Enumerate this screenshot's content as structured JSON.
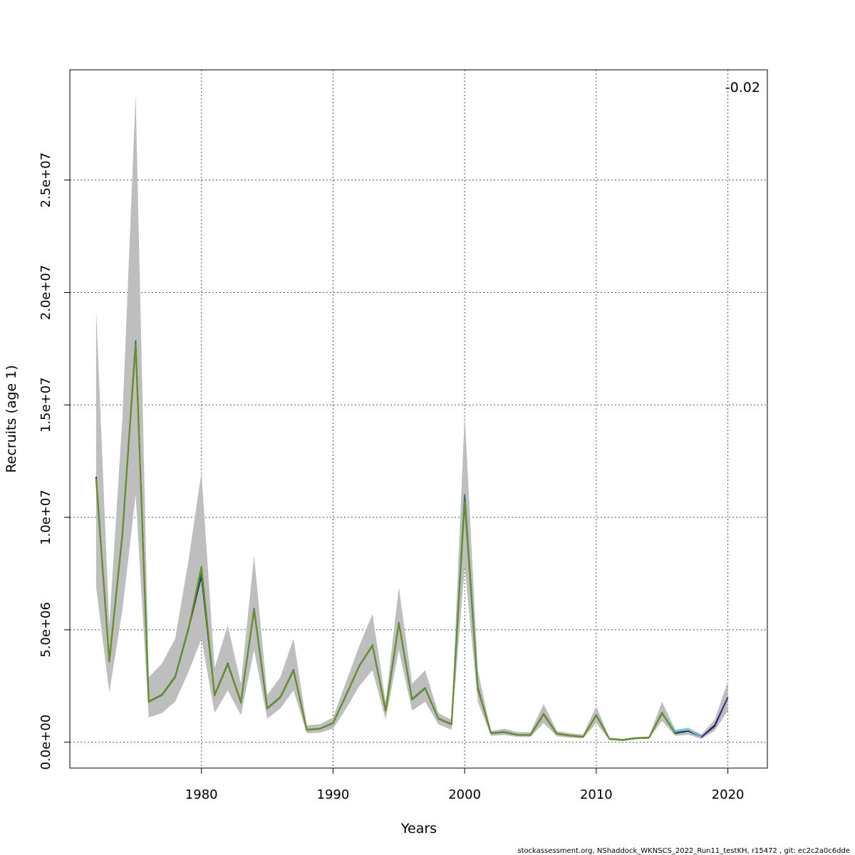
{
  "chart_data": {
    "type": "line",
    "xlabel": "Years",
    "ylabel": "Recruits (age 1)",
    "xlim": [
      1970,
      2023
    ],
    "ylim": [
      -1150000,
      29900000
    ],
    "x_ticks": [
      1980,
      1990,
      2000,
      2010,
      2020
    ],
    "y_ticks": [
      0,
      5000000,
      10000000,
      15000000,
      20000000,
      25000000
    ],
    "y_tick_labels": [
      "0.0e+00",
      "5.0e+06",
      "1.0e+07",
      "1.5e+07",
      "2.0e+07",
      "2.5e+07"
    ],
    "grid": true,
    "annotation": "-0.02",
    "footer": "stockassessment.org, NShaddock_WKNSCS_2022_Run11_testKH, r15472 , git: ec2c2a0c6dde",
    "band": {
      "x": [
        1972,
        1973,
        1974,
        1975,
        1976,
        1977,
        1978,
        1979,
        1980,
        1981,
        1982,
        1983,
        1984,
        1985,
        1986,
        1987,
        1988,
        1989,
        1990,
        1991,
        1992,
        1993,
        1994,
        1995,
        1996,
        1997,
        1998,
        1999,
        2000,
        2001,
        2002,
        2003,
        2004,
        2005,
        2006,
        2007,
        2008,
        2009,
        2010,
        2011,
        2012,
        2013,
        2014,
        2015,
        2016,
        2017,
        2018,
        2019,
        2020
      ],
      "upper": [
        19300000,
        5200000,
        14500000,
        28800000,
        2900000,
        3500000,
        4600000,
        8000000,
        12000000,
        3300000,
        5200000,
        2600000,
        8300000,
        2100000,
        2900000,
        4600000,
        750000,
        800000,
        1100000,
        2700000,
        4300000,
        5700000,
        1800000,
        6900000,
        2600000,
        3200000,
        1300000,
        1000000,
        14600000,
        3200000,
        500000,
        600000,
        450000,
        450000,
        1700000,
        500000,
        400000,
        350000,
        1600000,
        200000,
        150000,
        230000,
        250000,
        1800000,
        550000,
        650000,
        350000,
        1000000,
        2700000
      ],
      "lower": [
        6900000,
        2200000,
        5900000,
        11000000,
        1100000,
        1300000,
        1800000,
        3100000,
        4600000,
        1300000,
        2300000,
        1200000,
        4100000,
        1050000,
        1500000,
        2300000,
        400000,
        420000,
        600000,
        1500000,
        2500000,
        3200000,
        1000000,
        4100000,
        1400000,
        1800000,
        800000,
        550000,
        7800000,
        1800000,
        280000,
        320000,
        240000,
        230000,
        850000,
        260000,
        200000,
        170000,
        850000,
        90000,
        50000,
        130000,
        150000,
        950000,
        280000,
        330000,
        150000,
        500000,
        1400000
      ]
    },
    "series": [
      {
        "color": "#000000",
        "x": [
          1972,
          1973,
          1974,
          1975,
          1976,
          1977,
          1978,
          1979,
          1980,
          1981,
          1982,
          1983,
          1984,
          1985,
          1986,
          1987,
          1988,
          1989,
          1990,
          1991,
          1992,
          1993,
          1994,
          1995,
          1996,
          1997,
          1998,
          1999,
          2000,
          2001,
          2002,
          2003,
          2004,
          2005,
          2006,
          2007,
          2008,
          2009,
          2010,
          2011,
          2012,
          2013,
          2014,
          2015,
          2016,
          2017,
          2018,
          2019,
          2020
        ],
        "values": [
          11800000,
          3600000,
          9300000,
          17800000,
          1800000,
          2100000,
          2900000,
          5000000,
          7400000,
          2100000,
          3500000,
          1800000,
          5900000,
          1500000,
          2000000,
          3200000,
          550000,
          600000,
          850000,
          2100000,
          3400000,
          4300000,
          1400000,
          5300000,
          1900000,
          2400000,
          1050000,
          800000,
          10800000,
          2400000,
          400000,
          450000,
          330000,
          320000,
          1250000,
          380000,
          300000,
          240000,
          1200000,
          150000,
          100000,
          180000,
          200000,
          1300000,
          400000,
          500000,
          230000,
          750000,
          2000000
        ]
      },
      {
        "color": "#1f6f8b",
        "x": [
          1972,
          1973,
          1974,
          1975,
          1976,
          1977,
          1978,
          1979,
          1980,
          1981,
          1982,
          1983,
          1984,
          1985,
          1986,
          1987,
          1988,
          1989,
          1990,
          1991,
          1992,
          1993,
          1994,
          1995,
          1996,
          1997,
          1998,
          1999,
          2000,
          2001,
          2002,
          2003,
          2004,
          2005,
          2006,
          2007,
          2008,
          2009,
          2010,
          2011,
          2012,
          2013,
          2014,
          2015,
          2016,
          2017,
          2018
        ],
        "values": [
          11750000,
          3620000,
          9350000,
          17850000,
          1820000,
          2120000,
          2920000,
          5050000,
          7500000,
          2120000,
          3480000,
          1750000,
          5950000,
          1520000,
          2020000,
          3230000,
          560000,
          610000,
          860000,
          2120000,
          3420000,
          4320000,
          1420000,
          5320000,
          1920000,
          2420000,
          1060000,
          810000,
          11000000,
          2450000,
          410000,
          460000,
          335000,
          325000,
          1270000,
          385000,
          305000,
          245000,
          1220000,
          155000,
          105000,
          185000,
          205000,
          1320000,
          420000,
          540000,
          250000
        ]
      },
      {
        "color": "#5bc8e8",
        "x": [
          2014,
          2015,
          2016,
          2017,
          2018
        ],
        "values": [
          200000,
          1300000,
          500000,
          550000,
          220000
        ]
      },
      {
        "color": "#3b2f8f",
        "x": [
          2018,
          2019,
          2020
        ],
        "values": [
          230000,
          700000,
          2000000
        ]
      },
      {
        "color": "#6b8e23",
        "x": [
          1972,
          1973,
          1974,
          1975,
          1976,
          1977,
          1978,
          1979,
          1980,
          1981,
          1982,
          1983,
          1984,
          1985,
          1986,
          1987,
          1988,
          1989,
          1990,
          1991,
          1992,
          1993,
          1994,
          1995,
          1996,
          1997,
          1998,
          1999,
          2000,
          2001,
          2002,
          2003,
          2004,
          2005,
          2006,
          2007,
          2008,
          2009,
          2010,
          2011,
          2012,
          2013,
          2014,
          2015,
          2016
        ],
        "values": [
          11700000,
          3580000,
          9250000,
          17700000,
          1790000,
          2090000,
          2880000,
          4980000,
          7800000,
          2080000,
          3460000,
          1780000,
          5880000,
          1490000,
          1990000,
          3190000,
          545000,
          595000,
          845000,
          2090000,
          3390000,
          4290000,
          1390000,
          5280000,
          1890000,
          2390000,
          1040000,
          790000,
          10700000,
          2380000,
          395000,
          445000,
          325000,
          315000,
          1240000,
          375000,
          295000,
          235000,
          1190000,
          148000,
          98000,
          178000,
          198000,
          1290000,
          395000
        ]
      }
    ]
  }
}
